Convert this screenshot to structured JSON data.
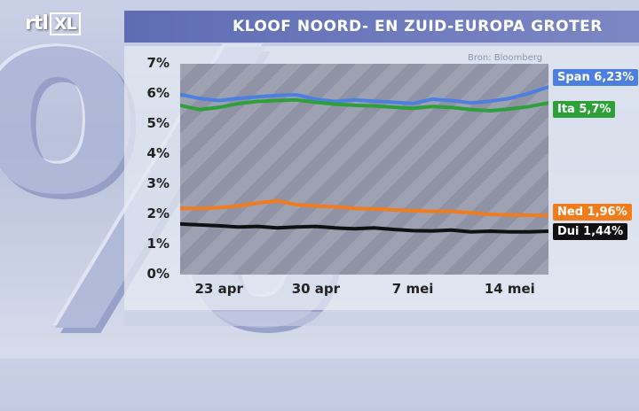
{
  "channel": {
    "logo_main": "rtl",
    "logo_box": "XL"
  },
  "background_symbol": "%",
  "header": {
    "title": "KLOOF NOORD- EN ZUID-EUROPA GROTER"
  },
  "source_note": "Bron: Bloomberg",
  "chart_data": {
    "type": "line",
    "title": "KLOOF NOORD- EN ZUID-EUROPA GROTER",
    "x_tick_labels": [
      "23 apr",
      "30 apr",
      "7 mei",
      "14 mei"
    ],
    "x_tick_positions": [
      2,
      7,
      12,
      17
    ],
    "x_count": 20,
    "ylim": [
      0,
      7
    ],
    "y_ticks": [
      "0%",
      "1%",
      "2%",
      "3%",
      "4%",
      "5%",
      "6%",
      "7%"
    ],
    "grid": false,
    "legend": "right (labels at line ends)",
    "series": [
      {
        "label": "Span 6,23%",
        "color": "#4d7fe0",
        "values": [
          5.98,
          5.85,
          5.78,
          5.85,
          5.9,
          5.95,
          5.97,
          5.82,
          5.75,
          5.8,
          5.76,
          5.72,
          5.68,
          5.82,
          5.78,
          5.7,
          5.76,
          5.85,
          6.02,
          6.23
        ]
      },
      {
        "label": "Ita 5,7%",
        "color": "#2ea03a",
        "values": [
          5.62,
          5.48,
          5.55,
          5.68,
          5.75,
          5.78,
          5.8,
          5.72,
          5.66,
          5.62,
          5.6,
          5.56,
          5.52,
          5.58,
          5.55,
          5.48,
          5.44,
          5.5,
          5.58,
          5.7
        ]
      },
      {
        "label": "Ned 1,96%",
        "color": "#f07c1e",
        "values": [
          2.2,
          2.2,
          2.22,
          2.28,
          2.38,
          2.45,
          2.32,
          2.28,
          2.25,
          2.2,
          2.18,
          2.15,
          2.12,
          2.1,
          2.1,
          2.05,
          2.0,
          1.98,
          1.97,
          1.96
        ]
      },
      {
        "label": "Dui 1,44%",
        "color": "#111111",
        "values": [
          1.68,
          1.65,
          1.62,
          1.58,
          1.6,
          1.55,
          1.58,
          1.6,
          1.55,
          1.52,
          1.55,
          1.5,
          1.46,
          1.45,
          1.48,
          1.42,
          1.44,
          1.42,
          1.42,
          1.44
        ]
      }
    ]
  }
}
